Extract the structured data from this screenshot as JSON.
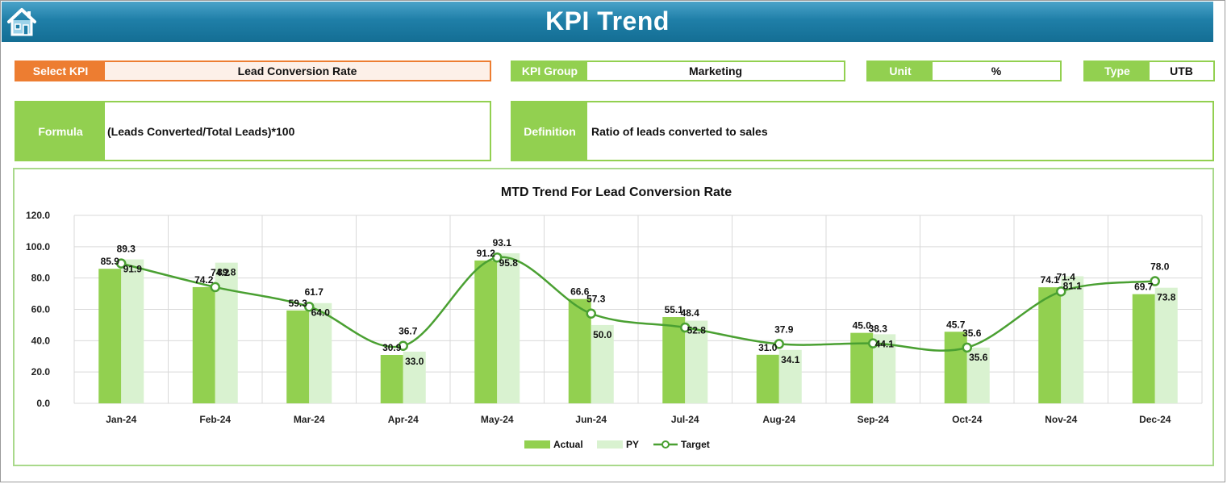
{
  "header": {
    "title": "KPI Trend",
    "home_icon": "home-icon"
  },
  "fields": {
    "select_kpi": {
      "label": "Select KPI",
      "value": "Lead Conversion Rate"
    },
    "kpi_group": {
      "label": "KPI Group",
      "value": "Marketing"
    },
    "unit": {
      "label": "Unit",
      "value": "%"
    },
    "type": {
      "label": "Type",
      "value": "UTB"
    },
    "formula": {
      "label": "Formula",
      "value": "(Leads Converted/Total Leads)*100"
    },
    "definition": {
      "label": "Definition",
      "value": "Ratio of leads converted to sales"
    }
  },
  "colors": {
    "accent_green": "#92d050",
    "accent_orange": "#ed7d31",
    "header_blue": "#1f7fa8",
    "py_green": "#d9f2d0",
    "target_line": "#4aa032"
  },
  "chart_data": {
    "type": "bar",
    "title": "MTD Trend For Lead Conversion Rate",
    "categories": [
      "Jan-24",
      "Feb-24",
      "Mar-24",
      "Apr-24",
      "May-24",
      "Jun-24",
      "Jul-24",
      "Aug-24",
      "Sep-24",
      "Oct-24",
      "Nov-24",
      "Dec-24"
    ],
    "series": [
      {
        "name": "Actual",
        "kind": "bar",
        "values": [
          85.9,
          74.2,
          59.3,
          30.9,
          91.2,
          66.6,
          55.1,
          31.0,
          45.0,
          45.7,
          74.1,
          69.7
        ]
      },
      {
        "name": "PY",
        "kind": "bar",
        "values": [
          91.9,
          89.8,
          64.0,
          33.0,
          95.8,
          50.0,
          52.8,
          34.1,
          44.1,
          35.6,
          81.1,
          73.8
        ]
      },
      {
        "name": "Target",
        "kind": "line",
        "values": [
          89.3,
          74.2,
          61.7,
          36.7,
          93.1,
          57.3,
          48.4,
          37.9,
          38.3,
          35.6,
          71.4,
          78.0
        ]
      }
    ],
    "ylim": [
      0,
      120
    ],
    "yticks": [
      "0.0",
      "20.0",
      "40.0",
      "60.0",
      "80.0",
      "100.0",
      "120.0"
    ],
    "grid": true,
    "legend": "bottom"
  }
}
